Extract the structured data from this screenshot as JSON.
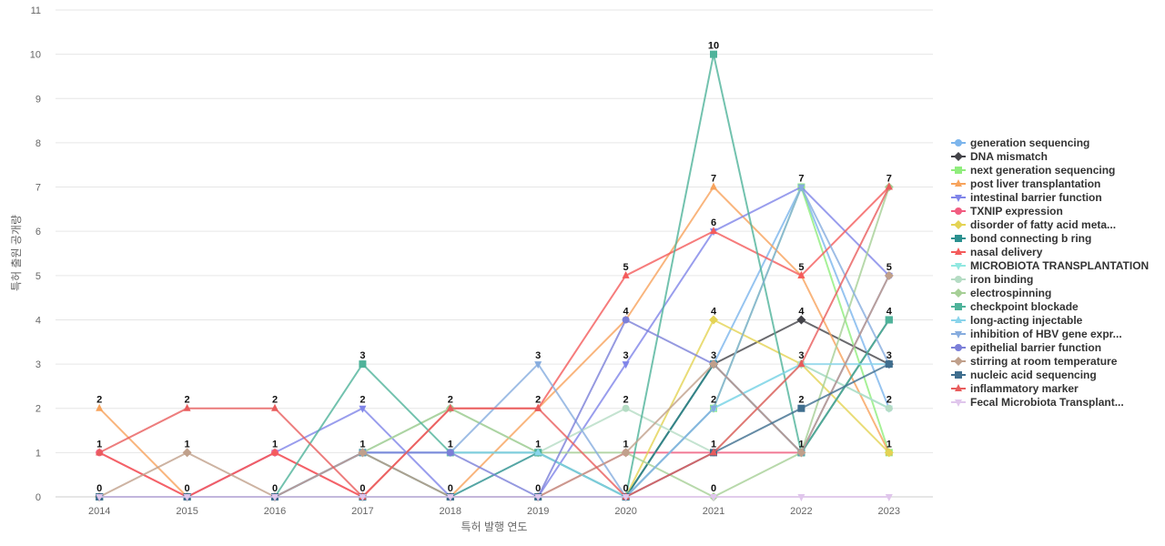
{
  "chart_data": {
    "type": "line",
    "xlabel": "특허 발행 연도",
    "ylabel": "특허 출원 공개량",
    "ylim": [
      0,
      11
    ],
    "y_ticks": [
      0,
      1,
      2,
      3,
      4,
      5,
      6,
      7,
      8,
      9,
      10,
      11
    ],
    "grid": true,
    "legend_position": "right",
    "categories": [
      "2014",
      "2015",
      "2016",
      "2017",
      "2018",
      "2019",
      "2020",
      "2021",
      "2022",
      "2023"
    ],
    "series": [
      {
        "name": "generation sequencing",
        "color": "#7cb5ec",
        "marker": "circle",
        "values": [
          0,
          0,
          0,
          1,
          1,
          1,
          0,
          3,
          7,
          2
        ]
      },
      {
        "name": "DNA mismatch",
        "color": "#434348",
        "marker": "diamond",
        "values": [
          0,
          0,
          0,
          0,
          0,
          0,
          0,
          3,
          4,
          3
        ]
      },
      {
        "name": "next generation sequencing",
        "color": "#90ed7d",
        "marker": "square",
        "values": [
          0,
          0,
          0,
          0,
          0,
          0,
          0,
          2,
          7,
          1
        ]
      },
      {
        "name": "post liver transplantation",
        "color": "#f7a35c",
        "marker": "triangle",
        "values": [
          2,
          0,
          0,
          0,
          0,
          2,
          4,
          7,
          5,
          1
        ]
      },
      {
        "name": "intestinal barrier function",
        "color": "#8085e9",
        "marker": "triangle-down",
        "values": [
          0,
          0,
          1,
          2,
          0,
          0,
          3,
          6,
          7,
          5
        ]
      },
      {
        "name": "TXNIP expression",
        "color": "#f15c80",
        "marker": "circle",
        "values": [
          1,
          0,
          1,
          0,
          0,
          0,
          1,
          1,
          1,
          4
        ]
      },
      {
        "name": "disorder of fatty acid meta...",
        "color": "#e4d354",
        "marker": "diamond",
        "values": [
          0,
          0,
          0,
          0,
          0,
          0,
          0,
          4,
          3,
          1
        ]
      },
      {
        "name": "bond connecting b ring",
        "color": "#2b908f",
        "marker": "square",
        "values": [
          0,
          0,
          0,
          1,
          0,
          1,
          0,
          3,
          1,
          4
        ]
      },
      {
        "name": "nasal delivery",
        "color": "#f45b5b",
        "marker": "triangle",
        "values": [
          1,
          0,
          1,
          0,
          2,
          2,
          5,
          6,
          5,
          7
        ]
      },
      {
        "name": "MICROBIOTA TRANSPLANTATION",
        "color": "#91e8e1",
        "marker": "triangle-down",
        "values": [
          0,
          0,
          0,
          0,
          0,
          0,
          0,
          2,
          3,
          2
        ]
      },
      {
        "name": "iron binding",
        "color": "#b5dcc4",
        "marker": "circle",
        "values": [
          0,
          0,
          0,
          1,
          2,
          1,
          2,
          1,
          3,
          2
        ]
      },
      {
        "name": "electrospinning",
        "color": "#a6cf96",
        "marker": "diamond",
        "values": [
          0,
          0,
          0,
          1,
          2,
          1,
          1,
          0,
          1,
          7
        ]
      },
      {
        "name": "checkpoint blockade",
        "color": "#4fb39a",
        "marker": "square",
        "values": [
          0,
          0,
          0,
          3,
          1,
          1,
          0,
          10,
          1,
          4
        ]
      },
      {
        "name": "long-acting injectable",
        "color": "#8ad4eb",
        "marker": "triangle",
        "values": [
          0,
          0,
          0,
          1,
          1,
          1,
          0,
          2,
          3,
          3
        ]
      },
      {
        "name": "inhibition of HBV gene expr...",
        "color": "#86acde",
        "marker": "triangle-down",
        "values": [
          0,
          0,
          0,
          1,
          1,
          3,
          0,
          2,
          7,
          3
        ]
      },
      {
        "name": "epithelial barrier function",
        "color": "#7b7fd8",
        "marker": "circle",
        "values": [
          0,
          0,
          0,
          1,
          1,
          0,
          4,
          3,
          1,
          5
        ]
      },
      {
        "name": "stirring at room temperature",
        "color": "#c0a08b",
        "marker": "diamond",
        "values": [
          0,
          1,
          0,
          1,
          0,
          0,
          1,
          3,
          1,
          5
        ]
      },
      {
        "name": "nucleic acid sequencing",
        "color": "#3f6e8e",
        "marker": "square",
        "values": [
          0,
          0,
          0,
          0,
          0,
          0,
          0,
          1,
          2,
          3
        ]
      },
      {
        "name": "inflammatory marker",
        "color": "#e85c5c",
        "marker": "triangle",
        "values": [
          1,
          2,
          2,
          0,
          2,
          2,
          0,
          1,
          3,
          7
        ]
      },
      {
        "name": "Fecal Microbiota Transplant...",
        "color": "#e0c6ec",
        "marker": "triangle-down",
        "values": [
          0,
          0,
          0,
          0,
          0,
          0,
          0,
          0,
          0,
          0
        ]
      }
    ],
    "data_labels": [
      {
        "x": "2014",
        "values": [
          2,
          1,
          0
        ]
      },
      {
        "x": "2015",
        "values": [
          2,
          1,
          0
        ]
      },
      {
        "x": "2016",
        "values": [
          2,
          1,
          0
        ]
      },
      {
        "x": "2017",
        "values": [
          3,
          2,
          1,
          0
        ]
      },
      {
        "x": "2018",
        "values": [
          2,
          1,
          0
        ]
      },
      {
        "x": "2019",
        "values": [
          3,
          2,
          1,
          0
        ]
      },
      {
        "x": "2020",
        "values": [
          5,
          4,
          3,
          2,
          1,
          0
        ]
      },
      {
        "x": "2021",
        "values": [
          10,
          7,
          6,
          4,
          3,
          2,
          1,
          0
        ]
      },
      {
        "x": "2022",
        "values": [
          7,
          5,
          4,
          3,
          2,
          1
        ]
      },
      {
        "x": "2023",
        "values": [
          7,
          5,
          4,
          3,
          2,
          1
        ]
      }
    ]
  }
}
